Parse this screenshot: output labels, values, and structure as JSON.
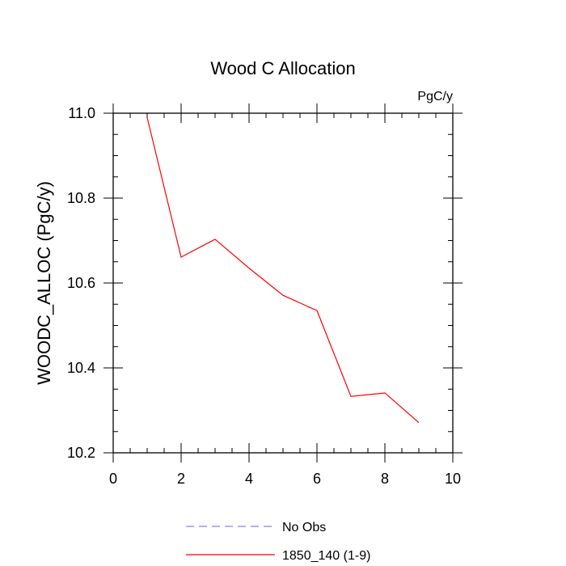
{
  "chart_data": {
    "type": "line",
    "title": "Wood C Allocation",
    "units_label": "PgC/y",
    "xlabel": "",
    "ylabel": "WOODC_ALLOC  (PgC/y)",
    "xlim": [
      0,
      10
    ],
    "ylim": [
      10.2,
      11.0
    ],
    "x_ticks": [
      0,
      2,
      4,
      6,
      8,
      10
    ],
    "x_tick_labels": [
      "0",
      "2",
      "4",
      "6",
      "8",
      "10"
    ],
    "y_ticks": [
      10.2,
      10.4,
      10.6,
      10.8,
      11.0
    ],
    "y_tick_labels": [
      "10.2",
      "10.4",
      "10.6",
      "10.8",
      "11.0"
    ],
    "x_minor_step": 0.5,
    "y_minor_step": 0.05,
    "grid": false,
    "legend_position": "bottom",
    "series": [
      {
        "name": "No Obs",
        "color": "#8080ff",
        "dash": "dashed",
        "x": [],
        "values": []
      },
      {
        "name": "1850_140 (1-9)",
        "color": "#ff0000",
        "dash": "solid",
        "x": [
          1,
          2,
          3,
          4,
          5,
          6,
          7,
          8,
          9
        ],
        "values": [
          10.99,
          10.661,
          10.703,
          10.635,
          10.571,
          10.535,
          10.333,
          10.341,
          10.271
        ]
      }
    ]
  }
}
